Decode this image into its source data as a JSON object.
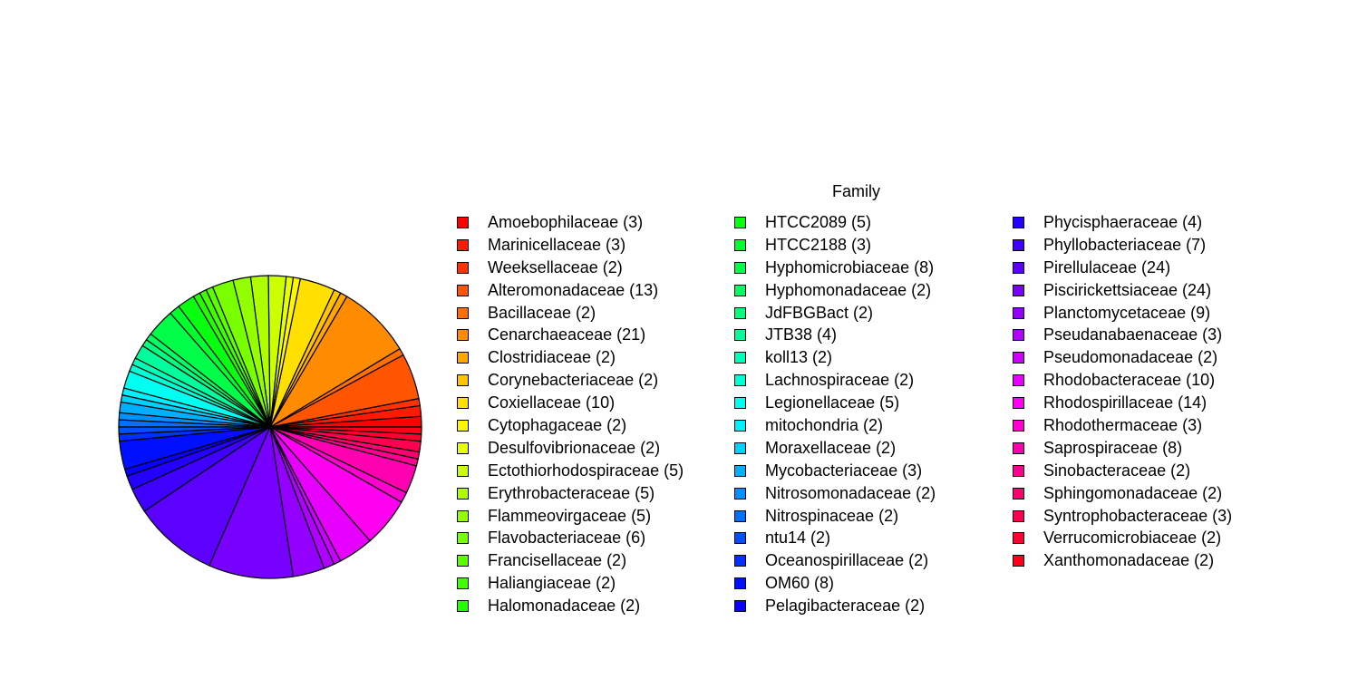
{
  "chart_data": {
    "type": "pie",
    "legend_title": "Family",
    "legend_position": "right",
    "slices": [
      {
        "label": "Amoebophilaceae (3)",
        "value": 3,
        "color": "#FF0000"
      },
      {
        "label": "Marinicellaceae (3)",
        "value": 3,
        "color": "#FF1A00"
      },
      {
        "label": "Weeksellaceae (2)",
        "value": 2,
        "color": "#FF3300"
      },
      {
        "label": "Alteromonadaceae (13)",
        "value": 13,
        "color": "#FF5500"
      },
      {
        "label": "Bacillaceae (2)",
        "value": 2,
        "color": "#FF7000"
      },
      {
        "label": "Cenarchaeaceae (21)",
        "value": 21,
        "color": "#FF8C00"
      },
      {
        "label": "Clostridiaceae (2)",
        "value": 2,
        "color": "#FFA800"
      },
      {
        "label": "Corynebacteriaceae (2)",
        "value": 2,
        "color": "#FFC400"
      },
      {
        "label": "Coxiellaceae (10)",
        "value": 10,
        "color": "#FFE000"
      },
      {
        "label": "Cytophagaceae (2)",
        "value": 2,
        "color": "#FFF700"
      },
      {
        "label": "Desulfovibrionaceae (2)",
        "value": 2,
        "color": "#E8FF00"
      },
      {
        "label": "Ectothiorhodospiraceae (5)",
        "value": 5,
        "color": "#CCFF00"
      },
      {
        "label": "Erythrobacteraceae (5)",
        "value": 5,
        "color": "#B0FF00"
      },
      {
        "label": "Flammeovirgaceae (5)",
        "value": 5,
        "color": "#94FF00"
      },
      {
        "label": "Flavobacteriaceae (6)",
        "value": 6,
        "color": "#78FF00"
      },
      {
        "label": "Francisellaceae (2)",
        "value": 2,
        "color": "#5CFF00"
      },
      {
        "label": "Haliangiaceae (2)",
        "value": 2,
        "color": "#40FF00"
      },
      {
        "label": "Halomonadaceae (2)",
        "value": 2,
        "color": "#24FF00"
      },
      {
        "label": "HTCC2089 (5)",
        "value": 5,
        "color": "#08FF10"
      },
      {
        "label": "HTCC2188 (3)",
        "value": 3,
        "color": "#00FF2C"
      },
      {
        "label": "Hyphomicrobiaceae (8)",
        "value": 8,
        "color": "#00FF48"
      },
      {
        "label": "Hyphomonadaceae (2)",
        "value": 2,
        "color": "#00FF64"
      },
      {
        "label": "JdFBGBact (2)",
        "value": 2,
        "color": "#00FF80"
      },
      {
        "label": "JTB38 (4)",
        "value": 4,
        "color": "#00FF9C"
      },
      {
        "label": "koll13 (2)",
        "value": 2,
        "color": "#00FFB8"
      },
      {
        "label": "Lachnospiraceae (2)",
        "value": 2,
        "color": "#00FFD4"
      },
      {
        "label": "Legionellaceae (5)",
        "value": 5,
        "color": "#00FFF0"
      },
      {
        "label": "mitochondria (2)",
        "value": 2,
        "color": "#00F0FF"
      },
      {
        "label": "Moraxellaceae (2)",
        "value": 2,
        "color": "#00D0FF"
      },
      {
        "label": "Mycobacteriaceae (3)",
        "value": 3,
        "color": "#00B0FF"
      },
      {
        "label": "Nitrosomonadaceae (2)",
        "value": 2,
        "color": "#0090FF"
      },
      {
        "label": "Nitrospinaceae (2)",
        "value": 2,
        "color": "#0070FF"
      },
      {
        "label": "ntu14 (2)",
        "value": 2,
        "color": "#0050FF"
      },
      {
        "label": "Oceanospirillaceae (2)",
        "value": 2,
        "color": "#0030FF"
      },
      {
        "label": "OM60 (8)",
        "value": 8,
        "color": "#0010FF"
      },
      {
        "label": "Pelagibacteraceae (2)",
        "value": 2,
        "color": "#0A00FF"
      },
      {
        "label": "Phycisphaeraceae (4)",
        "value": 4,
        "color": "#2400FF"
      },
      {
        "label": "Phyllobacteriaceae (7)",
        "value": 7,
        "color": "#4000FF"
      },
      {
        "label": "Pirellulaceae (24)",
        "value": 24,
        "color": "#5C00FF"
      },
      {
        "label": "Piscirickettsiaceae (24)",
        "value": 24,
        "color": "#7800FF"
      },
      {
        "label": "Planctomycetaceae (9)",
        "value": 9,
        "color": "#9400FF"
      },
      {
        "label": "Pseudanabaenaceae (3)",
        "value": 3,
        "color": "#B000FF"
      },
      {
        "label": "Pseudomonadaceae (2)",
        "value": 2,
        "color": "#CC00FF"
      },
      {
        "label": "Rhodobacteraceae (10)",
        "value": 10,
        "color": "#E800FF"
      },
      {
        "label": "Rhodospirillaceae (14)",
        "value": 14,
        "color": "#FF00F0"
      },
      {
        "label": "Rhodothermaceae (3)",
        "value": 3,
        "color": "#FF00D0"
      },
      {
        "label": "Saprospiraceae (8)",
        "value": 8,
        "color": "#FF00B0"
      },
      {
        "label": "Sinobacteraceae (2)",
        "value": 2,
        "color": "#FF0090"
      },
      {
        "label": "Sphingomonadaceae (2)",
        "value": 2,
        "color": "#FF0070"
      },
      {
        "label": "Syntrophobacteraceae (3)",
        "value": 3,
        "color": "#FF0050"
      },
      {
        "label": "Verrucomicrobiaceae (2)",
        "value": 2,
        "color": "#FF0030"
      },
      {
        "label": "Xanthomonadaceae (2)",
        "value": 2,
        "color": "#FF0018"
      }
    ]
  }
}
